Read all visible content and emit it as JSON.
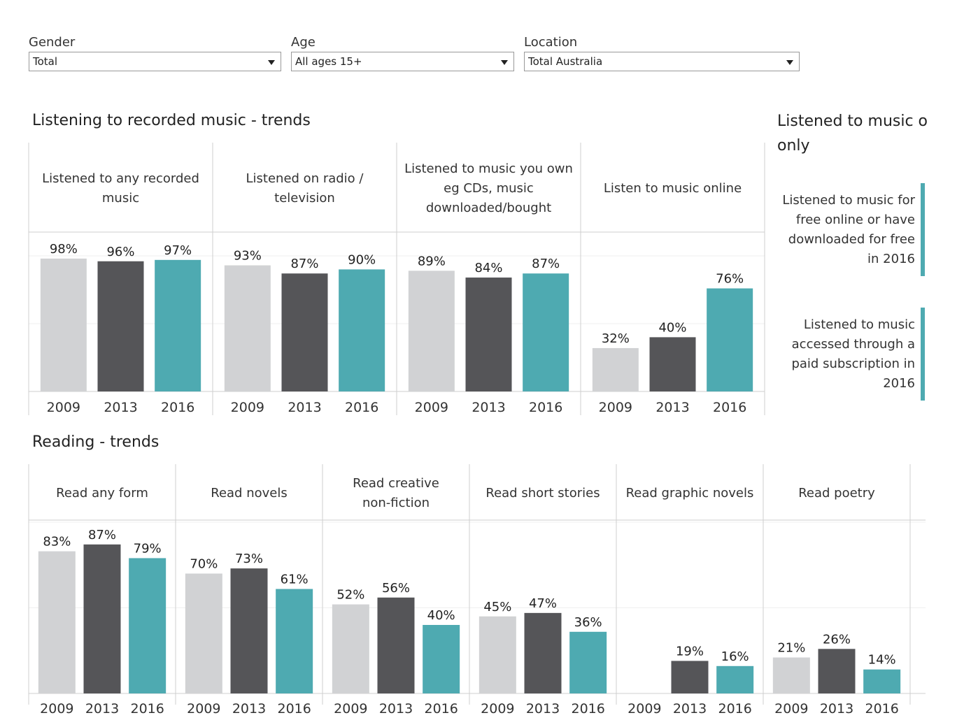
{
  "filters": [
    {
      "label": "Gender",
      "value": "Total"
    },
    {
      "label": "Age",
      "value": "All ages 15+"
    },
    {
      "label": "Location",
      "value": "Total Australia"
    }
  ],
  "music_title": "Listening to recorded music - trends",
  "reading_title": "Reading - trends",
  "side": {
    "title_line1": "Listened to music o",
    "title_line2": "only",
    "items": [
      {
        "label_lines": [
          "Listened to music for",
          "free online or have",
          "downloaded for free",
          "in 2016"
        ]
      },
      {
        "label_lines": [
          "Listened to music",
          "accessed through a",
          "paid subscription in",
          "2016"
        ]
      }
    ]
  },
  "colors": {
    "2009": "#d1d2d4",
    "2013": "#555558",
    "2016": "#4eaab1"
  },
  "chart_data": [
    {
      "type": "bar",
      "title": "Listening to recorded music - trends",
      "categories": [
        "2009",
        "2013",
        "2016"
      ],
      "ylim": [
        0,
        100
      ],
      "panels": [
        {
          "name_lines": [
            "Listened to any recorded",
            "music"
          ],
          "values": [
            98,
            96,
            97
          ],
          "labels": [
            "98%",
            "96%",
            "97%"
          ]
        },
        {
          "name_lines": [
            "Listened on radio /",
            "television"
          ],
          "values": [
            93,
            87,
            90
          ],
          "labels": [
            "93%",
            "87%",
            "90%"
          ]
        },
        {
          "name_lines": [
            "Listened to music you own",
            "eg  CDs, music",
            "downloaded/bought"
          ],
          "values": [
            89,
            84,
            87
          ],
          "labels": [
            "89%",
            "84%",
            "87%"
          ]
        },
        {
          "name_lines": [
            "Listen to music online"
          ],
          "values": [
            32,
            40,
            76
          ],
          "labels": [
            "32%",
            "40%",
            "76%"
          ]
        }
      ]
    },
    {
      "type": "bar",
      "title": "Reading - trends",
      "categories": [
        "2009",
        "2013",
        "2016"
      ],
      "ylim": [
        0,
        100
      ],
      "panels": [
        {
          "name_lines": [
            "Read any form"
          ],
          "values": [
            83,
            87,
            79
          ],
          "labels": [
            "83%",
            "87%",
            "79%"
          ]
        },
        {
          "name_lines": [
            "Read novels"
          ],
          "values": [
            70,
            73,
            61
          ],
          "labels": [
            "70%",
            "73%",
            "61%"
          ]
        },
        {
          "name_lines": [
            "Read creative",
            "non-fiction"
          ],
          "values": [
            52,
            56,
            40
          ],
          "labels": [
            "52%",
            "56%",
            "40%"
          ]
        },
        {
          "name_lines": [
            "Read short stories"
          ],
          "values": [
            45,
            47,
            36
          ],
          "labels": [
            "45%",
            "47%",
            "36%"
          ]
        },
        {
          "name_lines": [
            "Read graphic novels"
          ],
          "values": [
            null,
            19,
            16
          ],
          "labels": [
            "",
            "19%",
            "16%"
          ]
        },
        {
          "name_lines": [
            "Read poetry"
          ],
          "values": [
            21,
            26,
            14
          ],
          "labels": [
            "21%",
            "26%",
            "14%"
          ]
        }
      ]
    }
  ]
}
